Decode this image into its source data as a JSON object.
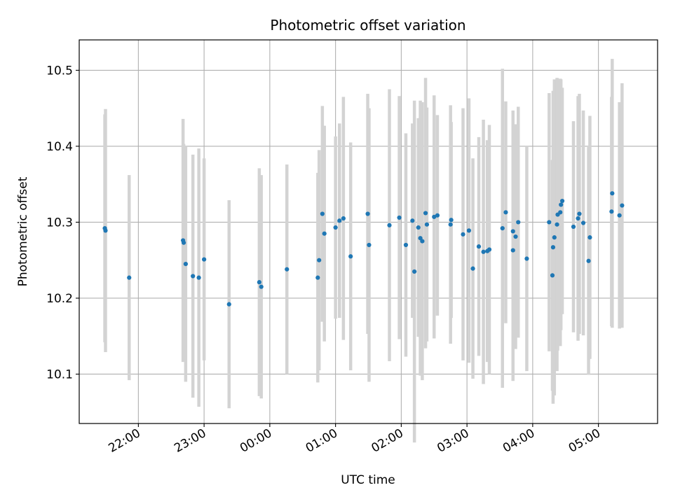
{
  "chart_data": {
    "type": "scatter",
    "title": "Photometric offset variation",
    "xlabel": "UTC time",
    "ylabel": "Photometric offset",
    "x_unit": "hours (UTC, continuing past 24:00 into the next day)",
    "xlim": [
      21.1,
      29.9
    ],
    "ylim": [
      10.035,
      10.54
    ],
    "grid": true,
    "x_ticks": [
      {
        "value": 22,
        "label": "22:00"
      },
      {
        "value": 23,
        "label": "23:00"
      },
      {
        "value": 24,
        "label": "00:00"
      },
      {
        "value": 25,
        "label": "01:00"
      },
      {
        "value": 26,
        "label": "02:00"
      },
      {
        "value": 27,
        "label": "03:00"
      },
      {
        "value": 28,
        "label": "04:00"
      },
      {
        "value": 29,
        "label": "05:00"
      }
    ],
    "y_ticks": [
      {
        "value": 10.1,
        "label": "10.1"
      },
      {
        "value": 10.2,
        "label": "10.2"
      },
      {
        "value": 10.3,
        "label": "10.3"
      },
      {
        "value": 10.4,
        "label": "10.4"
      },
      {
        "value": 10.5,
        "label": "10.5"
      }
    ],
    "colors": {
      "points": "#1f77b4",
      "errorbars": "#d3d3d3",
      "grid": "#b0b0b0"
    },
    "series": [
      {
        "x": [
          21.49,
          21.5,
          21.86,
          22.68,
          22.69,
          22.72,
          22.83,
          22.92,
          23.0,
          23.38,
          23.84,
          23.87,
          24.26,
          24.73,
          24.75,
          24.8,
          24.83,
          25.0,
          25.06,
          25.12,
          25.23,
          25.49,
          25.51,
          25.82,
          25.97,
          26.07,
          26.17,
          26.2,
          26.26,
          26.29,
          26.32,
          26.37,
          26.39,
          26.5,
          26.55,
          26.75,
          26.76,
          26.94,
          27.03,
          27.09,
          27.18,
          27.25,
          27.31,
          27.34,
          27.54,
          27.59,
          27.7,
          27.7,
          27.74,
          27.78,
          27.91,
          28.25,
          28.3,
          28.31,
          28.33,
          28.37,
          28.38,
          28.42,
          28.43,
          28.45,
          28.62,
          28.69,
          28.71,
          28.77,
          28.85,
          28.87,
          29.2,
          29.21,
          29.32,
          29.36
        ],
        "y": [
          10.292,
          10.289,
          10.227,
          10.276,
          10.273,
          10.245,
          10.229,
          10.227,
          10.251,
          10.192,
          10.221,
          10.215,
          10.238,
          10.227,
          10.25,
          10.311,
          10.285,
          10.293,
          10.302,
          10.305,
          10.255,
          10.311,
          10.27,
          10.296,
          10.306,
          10.27,
          10.302,
          10.235,
          10.293,
          10.279,
          10.275,
          10.312,
          10.297,
          10.307,
          10.309,
          10.297,
          10.303,
          10.284,
          10.289,
          10.239,
          10.268,
          10.261,
          10.262,
          10.264,
          10.292,
          10.313,
          10.263,
          10.288,
          10.281,
          10.3,
          10.252,
          10.3,
          10.23,
          10.267,
          10.28,
          10.297,
          10.31,
          10.313,
          10.323,
          10.328,
          10.294,
          10.305,
          10.311,
          10.299,
          10.249,
          10.28,
          10.314,
          10.338,
          10.309,
          10.322
        ],
        "err": [
          0.15,
          0.16,
          0.135,
          0.16,
          0.13,
          0.155,
          0.16,
          0.17,
          0.133,
          0.137,
          0.15,
          0.147,
          0.138,
          0.138,
          0.145,
          0.142,
          0.142,
          0.12,
          0.128,
          0.16,
          0.15,
          0.158,
          0.18,
          0.179,
          0.16,
          0.147,
          0.128,
          0.225,
          0.144,
          0.181,
          0.183,
          0.178,
          0.154,
          0.16,
          0.132,
          0.157,
          0.129,
          0.166,
          0.174,
          0.145,
          0.144,
          0.174,
          0.146,
          0.164,
          0.21,
          0.146,
          0.172,
          0.159,
          0.148,
          0.152,
          0.148,
          0.17,
          0.152,
          0.206,
          0.208,
          0.193,
          0.179,
          0.176,
          0.165,
          0.149,
          0.139,
          0.161,
          0.158,
          0.148,
          0.15,
          0.16,
          0.151,
          0.177,
          0.149,
          0.161
        ]
      }
    ]
  }
}
